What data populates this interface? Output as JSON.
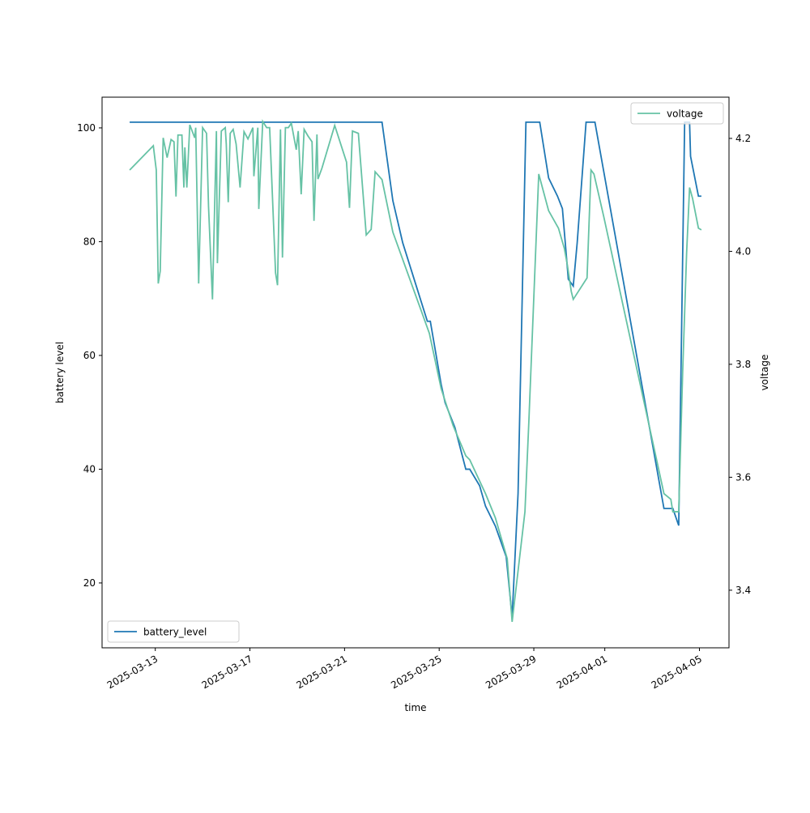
{
  "chart_data": {
    "type": "line",
    "xlabel": "time",
    "ylabel": "battery level",
    "y2label": "voltage",
    "xlim": [
      "2025-03-10T18:00",
      "2025-04-06T06:00"
    ],
    "xticks": [
      "2025-03-13",
      "2025-03-17",
      "2025-03-21",
      "2025-03-25",
      "2025-03-29",
      "2025-04-01",
      "2025-04-05"
    ],
    "ylim": [
      8.6,
      105.4
    ],
    "yticks": [
      20,
      40,
      60,
      80,
      100
    ],
    "y2lim": [
      3.298,
      4.273
    ],
    "y2ticks": [
      3.4,
      3.6,
      3.8,
      4.0,
      4.2
    ],
    "series": [
      {
        "name": "battery_level",
        "color": "#1f77b4",
        "axis": "y",
        "legend": "lower left",
        "x": [
          "2025-03-11T22:00",
          "2025-03-22T14:00",
          "2025-03-23T01:00",
          "2025-03-23T11:00",
          "2025-03-24T12:00",
          "2025-03-24T15:00",
          "2025-03-25T02:00",
          "2025-03-25T06:00",
          "2025-03-25T16:00",
          "2025-03-26T03:00",
          "2025-03-26T07:00",
          "2025-03-26T17:00",
          "2025-03-26T23:00",
          "2025-03-27T09:00",
          "2025-03-27T20:00",
          "2025-03-28T02:00",
          "2025-03-28T08:00",
          "2025-03-28T16:00",
          "2025-03-29T06:00",
          "2025-03-29T15:00",
          "2025-03-30T00:00",
          "2025-03-30T05:00",
          "2025-03-30T11:00",
          "2025-03-30T16:00",
          "2025-03-30T20:00",
          "2025-03-31T05:00",
          "2025-03-31T14:00",
          "2025-04-03T12:00",
          "2025-04-03T21:00",
          "2025-04-04T03:00",
          "2025-04-04T09:00",
          "2025-04-04T14:00",
          "2025-04-04T15:00",
          "2025-04-04T23:00",
          "2025-04-05T02:00"
        ],
        "values": [
          101,
          101,
          87.2,
          79.8,
          66,
          66,
          54.9,
          51.7,
          47.3,
          40,
          40,
          37.1,
          33.5,
          30,
          24.6,
          14,
          35.7,
          101,
          101,
          91.2,
          88,
          85.8,
          73.4,
          72.2,
          79.8,
          101,
          101,
          33.1,
          33.1,
          30.1,
          101,
          101,
          95,
          88,
          88
        ]
      },
      {
        "name": "voltage",
        "color": "#66c2a5",
        "axis": "y2",
        "legend": "upper right",
        "x": [
          "2025-03-11T22:00",
          "2025-03-12T22:00",
          "2025-03-13T01:00",
          "2025-03-13T03:00",
          "2025-03-13T05:00",
          "2025-03-13T08:00",
          "2025-03-13T12:00",
          "2025-03-13T16:00",
          "2025-03-13T19:00",
          "2025-03-13T21:00",
          "2025-03-13T23:00",
          "2025-03-14T03:00",
          "2025-03-14T05:00",
          "2025-03-14T06:00",
          "2025-03-14T08:00",
          "2025-03-14T11:00",
          "2025-03-14T16:00",
          "2025-03-14T17:00",
          "2025-03-14T20:00",
          "2025-03-15T00:00",
          "2025-03-15T04:00",
          "2025-03-15T06:00",
          "2025-03-15T10:00",
          "2025-03-15T14:00",
          "2025-03-15T15:00",
          "2025-03-15T19:00",
          "2025-03-15T23:00",
          "2025-03-16T00:00",
          "2025-03-16T02:00",
          "2025-03-16T04:00",
          "2025-03-16T07:00",
          "2025-03-16T10:00",
          "2025-03-16T14:00",
          "2025-03-16T18:00",
          "2025-03-16T22:00",
          "2025-03-17T03:00",
          "2025-03-17T04:00",
          "2025-03-17T08:00",
          "2025-03-17T09:00",
          "2025-03-17T13:00",
          "2025-03-17T17:00",
          "2025-03-17T20:00",
          "2025-03-18T02:00",
          "2025-03-18T04:00",
          "2025-03-18T07:00",
          "2025-03-18T09:00",
          "2025-03-18T12:00",
          "2025-03-18T15:00",
          "2025-03-18T18:00",
          "2025-03-18T23:00",
          "2025-03-19T01:00",
          "2025-03-19T04:00",
          "2025-03-19T07:00",
          "2025-03-19T11:00",
          "2025-03-19T15:00",
          "2025-03-19T17:00",
          "2025-03-19T20:00",
          "2025-03-19T21:00",
          "2025-03-20T01:00",
          "2025-03-20T14:00",
          "2025-03-21T02:00",
          "2025-03-21T05:00",
          "2025-03-21T08:00",
          "2025-03-21T14:00",
          "2025-03-21T22:00",
          "2025-03-22T03:00",
          "2025-03-22T07:00",
          "2025-03-22T14:00",
          "2025-03-23T01:00",
          "2025-03-24T14:00",
          "2025-03-25T02:00",
          "2025-03-25T14:00",
          "2025-03-26T03:00",
          "2025-03-26T07:00",
          "2025-03-26T23:00",
          "2025-03-27T09:00",
          "2025-03-27T21:00",
          "2025-03-28T02:00",
          "2025-03-28T15:00",
          "2025-03-28T19:00",
          "2025-03-29T05:00",
          "2025-03-29T15:00",
          "2025-03-30T01:00",
          "2025-03-30T07:00",
          "2025-03-30T10:00",
          "2025-03-30T14:00",
          "2025-03-30T16:00",
          "2025-03-31T06:00",
          "2025-03-31T10:00",
          "2025-03-31T13:00",
          "2025-03-31T23:00",
          "2025-04-03T12:00",
          "2025-04-03T19:00",
          "2025-04-03T21:00",
          "2025-04-04T03:00",
          "2025-04-04T07:00",
          "2025-04-04T11:00",
          "2025-04-04T14:00",
          "2025-04-04T17:00",
          "2025-04-04T23:00",
          "2025-04-05T02:00"
        ],
        "values": [
          4.144,
          4.187,
          4.144,
          3.943,
          3.965,
          4.201,
          4.166,
          4.198,
          4.194,
          4.097,
          4.206,
          4.206,
          4.113,
          4.184,
          4.113,
          4.224,
          4.201,
          4.219,
          3.943,
          4.219,
          4.209,
          4.08,
          3.915,
          4.213,
          3.979,
          4.213,
          4.219,
          4.19,
          4.087,
          4.209,
          4.216,
          4.19,
          4.113,
          4.212,
          4.199,
          4.219,
          4.133,
          4.219,
          4.075,
          4.23,
          4.219,
          4.219,
          3.962,
          3.94,
          4.216,
          3.989,
          4.219,
          4.219,
          4.227,
          4.18,
          4.213,
          4.101,
          4.216,
          4.204,
          4.194,
          4.054,
          4.207,
          4.128,
          4.147,
          4.223,
          4.158,
          4.077,
          4.213,
          4.209,
          4.029,
          4.039,
          4.141,
          4.127,
          4.034,
          3.855,
          3.757,
          3.692,
          3.638,
          3.631,
          3.571,
          3.528,
          3.456,
          3.344,
          3.539,
          3.7,
          4.137,
          4.072,
          4.041,
          4.005,
          3.976,
          3.929,
          3.915,
          3.953,
          4.144,
          4.137,
          4.061,
          3.571,
          3.561,
          3.539,
          3.539,
          3.786,
          3.997,
          4.113,
          4.094,
          4.041,
          4.038
        ]
      }
    ]
  }
}
